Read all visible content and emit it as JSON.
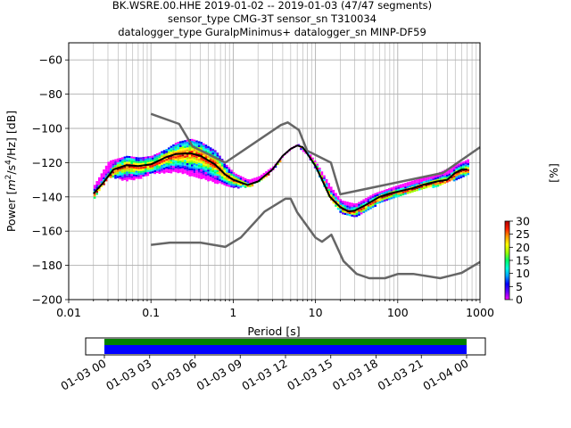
{
  "header": {
    "title_lines": [
      "BK.WSRE.00.HHE   2019-01-02 -- 2019-01-03  (47/47 segments)",
      "sensor_type CMG-3T sensor_sn T310034",
      "datalogger_type GuralpMinimus+ datalogger_sn MINP-DF59"
    ]
  },
  "chart_data": {
    "type": "heatmap",
    "xlabel": "Period [s]",
    "ylabel_parts": {
      "prefix": "Power [",
      "m": "m",
      "exp2": "2",
      "mid": "/s",
      "exp4": "4",
      "suffix": "/Hz] [dB]"
    },
    "xscale": "log",
    "xlim": [
      0.01,
      1000
    ],
    "ylim": [
      -200,
      -50
    ],
    "x_ticks": [
      {
        "value": 0.01,
        "label": "0.01"
      },
      {
        "value": 0.1,
        "label": "0.1"
      },
      {
        "value": 1,
        "label": "1"
      },
      {
        "value": 10,
        "label": "10"
      },
      {
        "value": 100,
        "label": "100"
      },
      {
        "value": 1000,
        "label": "1000"
      }
    ],
    "y_ticks": [
      {
        "value": -60,
        "label": "−60"
      },
      {
        "value": -80,
        "label": "−80"
      },
      {
        "value": -100,
        "label": "−100"
      },
      {
        "value": -120,
        "label": "−120"
      },
      {
        "value": -140,
        "label": "−140"
      },
      {
        "value": -160,
        "label": "−160"
      },
      {
        "value": -180,
        "label": "−180"
      },
      {
        "value": -200,
        "label": "−200"
      }
    ],
    "grid": true,
    "colorbar": {
      "label": "[%]",
      "range": [
        0,
        30
      ],
      "ticks": [
        {
          "value": 0,
          "label": "0"
        },
        {
          "value": 5,
          "label": "5"
        },
        {
          "value": 10,
          "label": "10"
        },
        {
          "value": 15,
          "label": "15"
        },
        {
          "value": 20,
          "label": "20"
        },
        {
          "value": 25,
          "label": "25"
        },
        {
          "value": 30,
          "label": "30"
        }
      ],
      "colors": [
        "#ffffff",
        "#ff00ff",
        "#6600ff",
        "#0000ff",
        "#00a0ff",
        "#00ffdd",
        "#00ff66",
        "#a0ff00",
        "#ffff00",
        "#ffa000",
        "#ff2000",
        "#b00000"
      ]
    },
    "new_high_noise_model": [
      [
        0.1,
        -91.5
      ],
      [
        0.22,
        -97.4
      ],
      [
        0.32,
        -110.5
      ],
      [
        0.8,
        -120
      ],
      [
        3.8,
        -98
      ],
      [
        4.6,
        -96.5
      ],
      [
        6.3,
        -101
      ],
      [
        7.9,
        -113
      ],
      [
        15.4,
        -120
      ],
      [
        20,
        -138.5
      ],
      [
        354.8,
        -126
      ],
      [
        1000,
        -111
      ]
    ],
    "new_low_noise_model": [
      [
        0.1,
        -168
      ],
      [
        0.17,
        -166.7
      ],
      [
        0.4,
        -166.7
      ],
      [
        0.8,
        -169.2
      ],
      [
        1.24,
        -163.7
      ],
      [
        2.4,
        -148.6
      ],
      [
        4.3,
        -141.1
      ],
      [
        5,
        -141.1
      ],
      [
        6,
        -149
      ],
      [
        10,
        -163.8
      ],
      [
        12,
        -166.2
      ],
      [
        15.6,
        -162.1
      ],
      [
        21.9,
        -177.5
      ],
      [
        31.6,
        -185
      ],
      [
        45,
        -187.5
      ],
      [
        70,
        -187.5
      ],
      [
        101,
        -185
      ],
      [
        154,
        -185
      ],
      [
        328,
        -187.5
      ],
      [
        600,
        -184.4
      ],
      [
        1000,
        -178
      ]
    ],
    "median_curve": [
      [
        0.02,
        -138
      ],
      [
        0.026,
        -132
      ],
      [
        0.035,
        -124
      ],
      [
        0.05,
        -121.5
      ],
      [
        0.07,
        -122
      ],
      [
        0.1,
        -121
      ],
      [
        0.15,
        -117
      ],
      [
        0.2,
        -115
      ],
      [
        0.3,
        -114.5
      ],
      [
        0.4,
        -116
      ],
      [
        0.6,
        -121
      ],
      [
        0.8,
        -127
      ],
      [
        1.0,
        -130
      ],
      [
        1.5,
        -133
      ],
      [
        2,
        -131
      ],
      [
        3,
        -124
      ],
      [
        4,
        -116
      ],
      [
        5,
        -112
      ],
      [
        6,
        -110
      ],
      [
        7,
        -111
      ],
      [
        8,
        -115
      ],
      [
        10,
        -122
      ],
      [
        12,
        -130
      ],
      [
        15,
        -140
      ],
      [
        20,
        -146
      ],
      [
        25,
        -148.5
      ],
      [
        30,
        -148
      ],
      [
        40,
        -145
      ],
      [
        60,
        -140
      ],
      [
        80,
        -138
      ],
      [
        100,
        -137
      ],
      [
        150,
        -135
      ],
      [
        200,
        -133
      ],
      [
        300,
        -131
      ],
      [
        400,
        -130
      ],
      [
        500,
        -126
      ],
      [
        600,
        -124
      ],
      [
        700,
        -124
      ]
    ],
    "lower_band": [
      [
        0.02,
        -140
      ],
      [
        0.03,
        -128
      ],
      [
        0.05,
        -130
      ],
      [
        0.07,
        -129
      ],
      [
        0.1,
        -126
      ],
      [
        0.2,
        -125
      ],
      [
        0.4,
        -129
      ],
      [
        0.7,
        -132
      ],
      [
        1.0,
        -134
      ],
      [
        1.5,
        -134
      ],
      [
        2,
        -131
      ],
      [
        3,
        -124
      ],
      [
        4,
        -116
      ],
      [
        5,
        -112
      ],
      [
        6,
        -110
      ],
      [
        8,
        -116
      ],
      [
        10,
        -124
      ],
      [
        15,
        -142
      ],
      [
        20,
        -149
      ],
      [
        30,
        -151
      ],
      [
        50,
        -145
      ],
      [
        100,
        -139
      ],
      [
        300,
        -133
      ],
      [
        700,
        -127
      ]
    ],
    "upper_band": [
      [
        0.02,
        -133
      ],
      [
        0.03,
        -119
      ],
      [
        0.05,
        -116
      ],
      [
        0.07,
        -117
      ],
      [
        0.1,
        -116
      ],
      [
        0.15,
        -112
      ],
      [
        0.2,
        -108
      ],
      [
        0.3,
        -106
      ],
      [
        0.4,
        -108
      ],
      [
        0.6,
        -113
      ],
      [
        0.8,
        -121
      ],
      [
        1.0,
        -126
      ],
      [
        1.5,
        -130
      ],
      [
        2,
        -128
      ],
      [
        3,
        -122
      ],
      [
        4,
        -115
      ],
      [
        5,
        -111
      ],
      [
        6,
        -109
      ],
      [
        8,
        -114
      ],
      [
        10,
        -120
      ],
      [
        15,
        -134
      ],
      [
        20,
        -142
      ],
      [
        30,
        -144
      ],
      [
        50,
        -138
      ],
      [
        100,
        -133
      ],
      [
        300,
        -126
      ],
      [
        700,
        -118
      ]
    ],
    "timeline": {
      "ticks": [
        "01-03 00",
        "01-03 03",
        "01-03 06",
        "01-03 09",
        "01-03 12",
        "01-03 15",
        "01-03 18",
        "01-03 21",
        "01-04 00"
      ],
      "coverage_color": "#008000",
      "data_color": "#0000ff"
    }
  }
}
